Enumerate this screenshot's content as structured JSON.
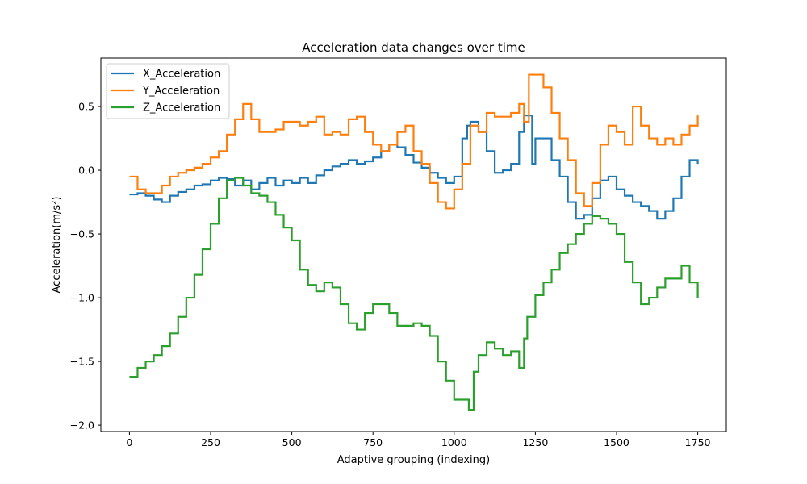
{
  "chart_data": {
    "type": "line",
    "title": "Acceleration data changes over time",
    "xlabel": "Adaptive grouping (indexing)",
    "ylabel": "Acceleration(m/s²)",
    "xlim": [
      -88,
      1838
    ],
    "ylim": [
      -2.05,
      0.88
    ],
    "xticks": [
      0,
      250,
      500,
      750,
      1000,
      1250,
      1500,
      1750
    ],
    "yticks": [
      -2.0,
      -1.5,
      -1.0,
      -0.5,
      0.0,
      0.5
    ],
    "ytick_labels": [
      "−2.0",
      "−1.5",
      "−1.0",
      "−0.5",
      "0.0",
      "0.5"
    ],
    "grid": false,
    "legend_position": "upper-left",
    "series": [
      {
        "name": "X_Acceleration",
        "color": "#1f77b4",
        "x": [
          0,
          25,
          50,
          75,
          100,
          125,
          150,
          175,
          200,
          225,
          250,
          275,
          300,
          325,
          350,
          375,
          400,
          425,
          450,
          475,
          500,
          525,
          550,
          575,
          600,
          625,
          650,
          675,
          700,
          725,
          750,
          775,
          800,
          825,
          850,
          875,
          900,
          925,
          950,
          975,
          1000,
          1025,
          1040,
          1050,
          1075,
          1100,
          1125,
          1150,
          1175,
          1200,
          1215,
          1240,
          1250,
          1275,
          1300,
          1325,
          1350,
          1375,
          1400,
          1425,
          1450,
          1475,
          1500,
          1525,
          1550,
          1575,
          1600,
          1625,
          1650,
          1675,
          1700,
          1725,
          1750
        ],
        "y": [
          -0.19,
          -0.18,
          -0.2,
          -0.23,
          -0.25,
          -0.2,
          -0.17,
          -0.15,
          -0.12,
          -0.11,
          -0.08,
          -0.06,
          -0.07,
          -0.12,
          -0.08,
          -0.15,
          -0.1,
          -0.06,
          -0.12,
          -0.08,
          -0.1,
          -0.06,
          -0.1,
          -0.04,
          0.0,
          0.03,
          0.05,
          0.08,
          0.05,
          0.07,
          0.1,
          0.15,
          0.2,
          0.18,
          0.12,
          0.06,
          0.02,
          -0.02,
          -0.06,
          -0.1,
          -0.05,
          0.25,
          0.35,
          0.38,
          0.3,
          0.15,
          -0.02,
          0.0,
          0.05,
          0.3,
          0.43,
          0.05,
          0.25,
          0.25,
          0.08,
          -0.05,
          -0.25,
          -0.38,
          -0.35,
          -0.22,
          -0.08,
          -0.05,
          -0.15,
          -0.2,
          -0.25,
          -0.28,
          -0.32,
          -0.38,
          -0.32,
          -0.22,
          -0.05,
          0.08,
          0.05
        ]
      },
      {
        "name": "Y_Acceleration",
        "color": "#ff7f0e",
        "x": [
          0,
          25,
          50,
          75,
          100,
          125,
          150,
          175,
          200,
          225,
          250,
          275,
          300,
          325,
          350,
          375,
          400,
          425,
          450,
          475,
          500,
          525,
          550,
          575,
          600,
          625,
          650,
          675,
          700,
          725,
          750,
          775,
          800,
          825,
          850,
          875,
          900,
          925,
          950,
          975,
          1000,
          1025,
          1050,
          1075,
          1100,
          1125,
          1150,
          1175,
          1200,
          1215,
          1230,
          1250,
          1275,
          1300,
          1325,
          1350,
          1375,
          1400,
          1425,
          1450,
          1475,
          1500,
          1525,
          1550,
          1575,
          1600,
          1625,
          1650,
          1675,
          1700,
          1725,
          1750
        ],
        "y": [
          -0.05,
          -0.15,
          -0.18,
          -0.18,
          -0.12,
          -0.05,
          -0.02,
          0.0,
          0.02,
          0.05,
          0.1,
          0.15,
          0.28,
          0.4,
          0.52,
          0.4,
          0.3,
          0.3,
          0.32,
          0.38,
          0.38,
          0.35,
          0.38,
          0.42,
          0.28,
          0.3,
          0.28,
          0.4,
          0.42,
          0.3,
          0.2,
          0.15,
          0.2,
          0.3,
          0.35,
          0.15,
          0.05,
          -0.1,
          -0.25,
          -0.3,
          -0.15,
          0.05,
          0.35,
          0.3,
          0.45,
          0.42,
          0.42,
          0.45,
          0.52,
          0.38,
          0.75,
          0.75,
          0.65,
          0.45,
          0.25,
          0.08,
          -0.18,
          -0.28,
          -0.1,
          0.2,
          0.35,
          0.3,
          0.2,
          0.5,
          0.35,
          0.25,
          0.2,
          0.25,
          0.2,
          0.28,
          0.35,
          0.43
        ]
      },
      {
        "name": "Z_Acceleration",
        "color": "#2ca02c",
        "x": [
          0,
          25,
          50,
          75,
          100,
          125,
          150,
          175,
          200,
          225,
          250,
          275,
          300,
          325,
          350,
          375,
          400,
          425,
          450,
          475,
          500,
          525,
          550,
          575,
          600,
          625,
          650,
          675,
          700,
          725,
          750,
          775,
          800,
          825,
          850,
          875,
          900,
          925,
          950,
          975,
          1000,
          1025,
          1045,
          1060,
          1075,
          1100,
          1125,
          1150,
          1175,
          1200,
          1215,
          1225,
          1250,
          1275,
          1300,
          1325,
          1350,
          1375,
          1400,
          1425,
          1450,
          1475,
          1500,
          1525,
          1550,
          1575,
          1600,
          1625,
          1650,
          1675,
          1700,
          1725,
          1750
        ],
        "y": [
          -1.62,
          -1.55,
          -1.5,
          -1.45,
          -1.38,
          -1.28,
          -1.15,
          -1.0,
          -0.82,
          -0.62,
          -0.42,
          -0.22,
          -0.08,
          -0.06,
          -0.12,
          -0.18,
          -0.2,
          -0.25,
          -0.35,
          -0.45,
          -0.55,
          -0.78,
          -0.9,
          -0.95,
          -0.88,
          -0.92,
          -1.05,
          -1.2,
          -1.25,
          -1.12,
          -1.05,
          -1.05,
          -1.12,
          -1.22,
          -1.22,
          -1.2,
          -1.22,
          -1.3,
          -1.5,
          -1.65,
          -1.8,
          -1.8,
          -1.88,
          -1.58,
          -1.45,
          -1.35,
          -1.4,
          -1.45,
          -1.42,
          -1.55,
          -1.32,
          -1.15,
          -0.98,
          -0.88,
          -0.78,
          -0.65,
          -0.58,
          -0.5,
          -0.42,
          -0.36,
          -0.38,
          -0.42,
          -0.5,
          -0.72,
          -0.88,
          -1.05,
          -1.0,
          -0.92,
          -0.85,
          -0.85,
          -0.75,
          -0.88,
          -1.0
        ]
      }
    ]
  }
}
